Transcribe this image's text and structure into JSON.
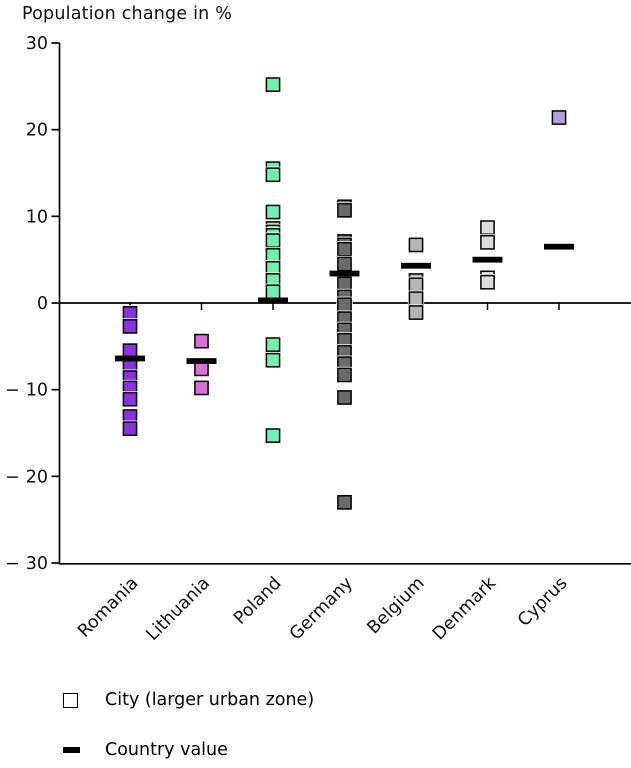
{
  "title": "Population change in %",
  "legend": [
    {
      "marker": "open-square-icon",
      "label": "City (larger urban zone)"
    },
    {
      "marker": "dash-icon",
      "label": "Country value"
    }
  ],
  "chart_data": {
    "type": "scatter",
    "title": "Population change in %",
    "ylabel": "",
    "xlabel": "",
    "ylim": [
      -30,
      30
    ],
    "yticks": [
      30,
      20,
      10,
      0,
      -10,
      -20,
      -30
    ],
    "grid": false,
    "zero_baseline": true,
    "legend_position": "bottom",
    "marker_shape": "square",
    "categories": [
      "Romania",
      "Lithuania",
      "Poland",
      "Germany",
      "Belgium",
      "Denmark",
      "Cyprus"
    ],
    "series": [
      {
        "name": "Romania",
        "color": "#8a32e0",
        "cities": [
          -1.2,
          -2.7,
          -5.5,
          -7.4,
          -8.6,
          -9.8,
          -11.1,
          -13.1,
          -14.5
        ],
        "country_value": -6.4
      },
      {
        "name": "Lithuania",
        "color": "#da70d6",
        "cities": [
          -4.4,
          -7.6,
          -9.8
        ],
        "country_value": -6.7
      },
      {
        "name": "Poland",
        "color": "#6ef2ae",
        "cities": [
          25.2,
          15.5,
          14.8,
          10.5,
          8.6,
          8.2,
          7.8,
          7.2,
          5.5,
          4.0,
          2.6,
          1.3,
          -4.8,
          -6.6,
          -15.3
        ],
        "country_value": 0.3
      },
      {
        "name": "Germany",
        "color": "#6b6b6b",
        "cities": [
          11.1,
          10.7,
          7.1,
          6.7,
          6.2,
          4.5,
          2.2,
          0.7,
          -0.2,
          -1.8,
          -3.1,
          -4.3,
          -5.7,
          -7.0,
          -8.3,
          -10.9,
          -23.0
        ],
        "country_value": 3.4
      },
      {
        "name": "Belgium",
        "color": "#b5b5b5",
        "cities": [
          6.7,
          2.6,
          2.1,
          0.5,
          -1.1
        ],
        "country_value": 4.3
      },
      {
        "name": "Denmark",
        "color": "#dcdcdc",
        "cities": [
          8.7,
          7.0,
          2.9,
          2.4
        ],
        "country_value": 5.0
      },
      {
        "name": "Cyprus",
        "color": "#b59ce0",
        "cities": [
          21.4
        ],
        "country_value": 6.5
      }
    ]
  }
}
